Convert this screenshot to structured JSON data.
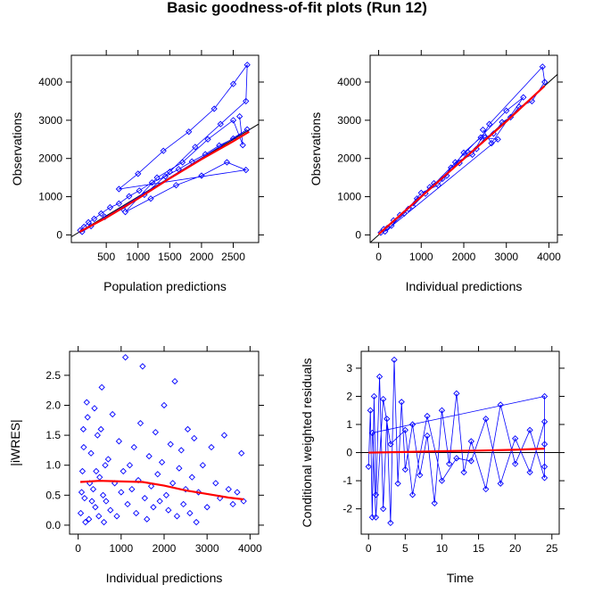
{
  "title": "Basic goodness-of-fit plots (Run 12)",
  "colors": {
    "points": "#0000ff",
    "smooth": "#ff0000",
    "reference": "#000000"
  },
  "chart_data": [
    {
      "id": "p1",
      "type": "scatter",
      "xlabel": "Population predictions",
      "ylabel": "Observations",
      "xticks": [
        500,
        1000,
        1500,
        2000,
        2500
      ],
      "yticks": [
        0,
        1000,
        2000,
        3000,
        4000
      ],
      "xlim": [
        -50,
        2900
      ],
      "ylim": [
        -200,
        4700
      ],
      "grid": false,
      "reference": "identity",
      "connected": true,
      "points": [
        [
          90,
          120
        ],
        [
          150,
          210
        ],
        [
          220,
          330
        ],
        [
          310,
          420
        ],
        [
          420,
          560
        ],
        [
          560,
          720
        ],
        [
          700,
          820
        ],
        [
          860,
          1010
        ],
        [
          1020,
          1160
        ],
        [
          1220,
          1370
        ],
        [
          1430,
          1530
        ],
        [
          1640,
          1720
        ],
        [
          1850,
          1920
        ],
        [
          2060,
          2110
        ],
        [
          2280,
          2340
        ],
        [
          2500,
          2520
        ],
        [
          2720,
          2760
        ],
        [
          120,
          80
        ],
        [
          260,
          230
        ],
        [
          480,
          470
        ],
        [
          760,
          680
        ],
        [
          1100,
          1050
        ],
        [
          1500,
          1650
        ],
        [
          1900,
          2300
        ],
        [
          2300,
          2900
        ],
        [
          2700,
          3500
        ],
        [
          2720,
          4450
        ],
        [
          2500,
          3950
        ],
        [
          2200,
          3300
        ],
        [
          1800,
          2700
        ],
        [
          1400,
          2200
        ],
        [
          1000,
          1600
        ],
        [
          700,
          1200
        ],
        [
          2700,
          1700
        ],
        [
          2400,
          1900
        ],
        [
          2000,
          1550
        ],
        [
          1600,
          1300
        ],
        [
          1200,
          950
        ],
        [
          800,
          600
        ],
        [
          1300,
          1500
        ],
        [
          1700,
          1900
        ],
        [
          2100,
          2500
        ],
        [
          2500,
          3000
        ],
        [
          2650,
          2350
        ],
        [
          2600,
          3100
        ]
      ],
      "smooth": [
        [
          80,
          80
        ],
        [
          500,
          450
        ],
        [
          1000,
          950
        ],
        [
          1500,
          1480
        ],
        [
          2000,
          1980
        ],
        [
          2500,
          2450
        ],
        [
          2750,
          2700
        ]
      ]
    },
    {
      "id": "p2",
      "type": "scatter",
      "xlabel": "Individual predictions",
      "ylabel": "Observations",
      "xticks": [
        0,
        1000,
        2000,
        3000,
        4000
      ],
      "yticks": [
        0,
        1000,
        2000,
        3000,
        4000
      ],
      "xlim": [
        -200,
        4200
      ],
      "ylim": [
        -200,
        4700
      ],
      "grid": false,
      "reference": "identity",
      "connected": true,
      "points": [
        [
          50,
          60
        ],
        [
          120,
          150
        ],
        [
          200,
          180
        ],
        [
          350,
          380
        ],
        [
          500,
          520
        ],
        [
          700,
          680
        ],
        [
          900,
          950
        ],
        [
          1100,
          1080
        ],
        [
          1300,
          1350
        ],
        [
          1500,
          1470
        ],
        [
          1700,
          1760
        ],
        [
          1900,
          1880
        ],
        [
          2100,
          2160
        ],
        [
          2300,
          2250
        ],
        [
          2500,
          2550
        ],
        [
          2700,
          2650
        ],
        [
          2900,
          2950
        ],
        [
          3100,
          3080
        ],
        [
          3300,
          3350
        ],
        [
          3600,
          3500
        ],
        [
          3900,
          4000
        ],
        [
          3850,
          4400
        ],
        [
          2600,
          2900
        ],
        [
          2200,
          2100
        ],
        [
          1800,
          1900
        ],
        [
          1400,
          1300
        ],
        [
          1000,
          1100
        ],
        [
          600,
          560
        ],
        [
          300,
          240
        ],
        [
          150,
          90
        ],
        [
          2800,
          2500
        ],
        [
          2400,
          2550
        ],
        [
          2000,
          2150
        ],
        [
          1600,
          1550
        ],
        [
          1200,
          1250
        ],
        [
          800,
          750
        ],
        [
          3000,
          3250
        ],
        [
          3400,
          3600
        ],
        [
          2650,
          2400
        ],
        [
          2450,
          2750
        ]
      ],
      "smooth": [
        [
          0,
          20
        ],
        [
          1000,
          1000
        ],
        [
          2000,
          1990
        ],
        [
          3000,
          2970
        ],
        [
          3900,
          3900
        ]
      ]
    },
    {
      "id": "p3",
      "type": "scatter",
      "xlabel": "Individual predictions",
      "ylabel": "|iWRES|",
      "xticks": [
        0,
        1000,
        2000,
        3000,
        4000
      ],
      "yticks": [
        0.0,
        0.5,
        1.0,
        1.5,
        2.0,
        2.5
      ],
      "xlim": [
        -200,
        4200
      ],
      "ylim": [
        -0.15,
        2.9
      ],
      "grid": false,
      "reference": "none",
      "connected": false,
      "points": [
        [
          60,
          0.2
        ],
        [
          100,
          0.9
        ],
        [
          120,
          1.6
        ],
        [
          150,
          0.45
        ],
        [
          200,
          2.05
        ],
        [
          250,
          0.1
        ],
        [
          300,
          1.2
        ],
        [
          350,
          0.6
        ],
        [
          400,
          0.3
        ],
        [
          450,
          1.5
        ],
        [
          500,
          0.8
        ],
        [
          550,
          2.3
        ],
        [
          600,
          0.05
        ],
        [
          650,
          0.4
        ],
        [
          700,
          1.1
        ],
        [
          750,
          0.25
        ],
        [
          800,
          1.85
        ],
        [
          850,
          0.7
        ],
        [
          900,
          0.15
        ],
        [
          950,
          1.4
        ],
        [
          1000,
          0.55
        ],
        [
          1050,
          0.9
        ],
        [
          1100,
          2.8
        ],
        [
          1150,
          0.35
        ],
        [
          1200,
          1.0
        ],
        [
          1250,
          0.6
        ],
        [
          1300,
          1.3
        ],
        [
          1350,
          0.2
        ],
        [
          1400,
          0.75
        ],
        [
          1450,
          1.7
        ],
        [
          1500,
          2.65
        ],
        [
          1550,
          0.45
        ],
        [
          1600,
          0.1
        ],
        [
          1650,
          1.15
        ],
        [
          1700,
          0.65
        ],
        [
          1750,
          0.3
        ],
        [
          1800,
          1.55
        ],
        [
          1850,
          0.85
        ],
        [
          1900,
          0.4
        ],
        [
          1950,
          1.05
        ],
        [
          2000,
          2.0
        ],
        [
          2050,
          0.5
        ],
        [
          2100,
          0.25
        ],
        [
          2150,
          1.35
        ],
        [
          2200,
          0.7
        ],
        [
          2250,
          2.4
        ],
        [
          2300,
          0.15
        ],
        [
          2350,
          0.95
        ],
        [
          2400,
          1.25
        ],
        [
          2450,
          0.35
        ],
        [
          2500,
          0.6
        ],
        [
          2550,
          1.6
        ],
        [
          2600,
          0.2
        ],
        [
          2650,
          0.8
        ],
        [
          2700,
          1.45
        ],
        [
          2750,
          0.05
        ],
        [
          2800,
          0.55
        ],
        [
          2900,
          1.0
        ],
        [
          3000,
          0.3
        ],
        [
          3100,
          1.3
        ],
        [
          3200,
          0.7
        ],
        [
          3300,
          0.45
        ],
        [
          3400,
          1.5
        ],
        [
          3500,
          0.6
        ],
        [
          3600,
          0.35
        ],
        [
          3700,
          0.55
        ],
        [
          3800,
          1.2
        ],
        [
          3850,
          0.4
        ],
        [
          80,
          0.55
        ],
        [
          130,
          1.3
        ],
        [
          170,
          0.05
        ],
        [
          220,
          1.8
        ],
        [
          270,
          0.7
        ],
        [
          320,
          0.4
        ],
        [
          380,
          1.95
        ],
        [
          420,
          0.9
        ],
        [
          480,
          0.15
        ],
        [
          530,
          1.6
        ],
        [
          580,
          0.5
        ],
        [
          630,
          1.0
        ]
      ],
      "smooth": [
        [
          50,
          0.72
        ],
        [
          500,
          0.74
        ],
        [
          1000,
          0.73
        ],
        [
          1500,
          0.72
        ],
        [
          2000,
          0.66
        ],
        [
          2500,
          0.58
        ],
        [
          3000,
          0.52
        ],
        [
          3500,
          0.46
        ],
        [
          3850,
          0.43
        ]
      ]
    },
    {
      "id": "p4",
      "type": "scatter",
      "xlabel": "Time",
      "ylabel": "Conditional weighted residuals",
      "xticks": [
        0,
        5,
        10,
        15,
        20,
        25
      ],
      "yticks": [
        -2,
        -1,
        0,
        1,
        2,
        3
      ],
      "xlim": [
        -1,
        26
      ],
      "ylim": [
        -2.9,
        3.6
      ],
      "grid": false,
      "reference": "zero",
      "connected": true,
      "points": [
        [
          0,
          -0.5
        ],
        [
          0.25,
          1.5
        ],
        [
          0.5,
          -2.3
        ],
        [
          0.75,
          2.0
        ],
        [
          1,
          -1.5
        ],
        [
          1.5,
          2.7
        ],
        [
          2,
          -2.0
        ],
        [
          2.5,
          1.2
        ],
        [
          3,
          -2.5
        ],
        [
          3.5,
          3.3
        ],
        [
          4,
          -1.1
        ],
        [
          4.5,
          1.8
        ],
        [
          5,
          -0.6
        ],
        [
          6,
          1.0
        ],
        [
          7,
          -0.8
        ],
        [
          8,
          0.6
        ],
        [
          9,
          -1.8
        ],
        [
          10,
          1.5
        ],
        [
          11,
          -0.4
        ],
        [
          12,
          2.1
        ],
        [
          13,
          -0.7
        ],
        [
          14,
          0.4
        ],
        [
          16,
          -1.3
        ],
        [
          18,
          1.7
        ],
        [
          20,
          -0.4
        ],
        [
          22,
          0.8
        ],
        [
          24,
          -0.9
        ],
        [
          24,
          1.1
        ],
        [
          22,
          -0.7
        ],
        [
          20,
          0.5
        ],
        [
          18,
          -1.1
        ],
        [
          16,
          1.2
        ],
        [
          14,
          -0.3
        ],
        [
          12,
          -0.2
        ],
        [
          10,
          -1.0
        ],
        [
          8,
          1.3
        ],
        [
          6,
          -1.5
        ],
        [
          5,
          0.8
        ],
        [
          3,
          0.3
        ],
        [
          2,
          1.9
        ],
        [
          1,
          -2.3
        ],
        [
          0.5,
          0.7
        ],
        [
          24,
          2.0
        ],
        [
          24,
          -0.5
        ],
        [
          24,
          0.3
        ]
      ],
      "smooth": [
        [
          0,
          0.0
        ],
        [
          5,
          0.02
        ],
        [
          10,
          0.05
        ],
        [
          15,
          0.07
        ],
        [
          20,
          0.1
        ],
        [
          24,
          0.14
        ]
      ]
    }
  ]
}
